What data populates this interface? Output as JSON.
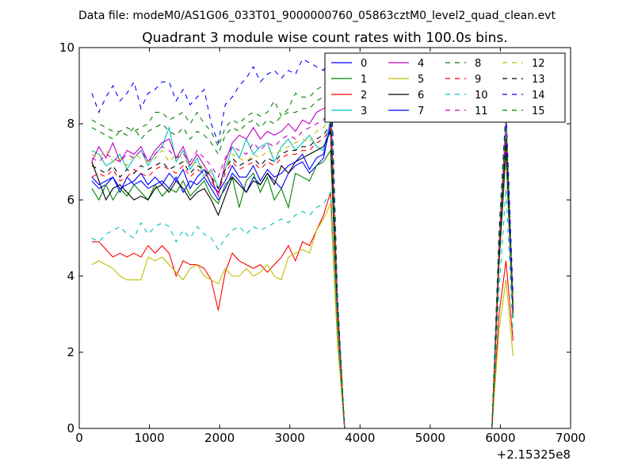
{
  "suptitle": "Data file: modeM0/AS1G06_033T01_9000000760_05863cztM0_level2_quad_clean.evt",
  "chart_data": {
    "type": "line",
    "title": "Quadrant 3 module wise count rates with 100.0s bins.",
    "xlabel": "",
    "ylabel": "",
    "x_offset_label": "+2.15325e8",
    "xlim": [
      0,
      7000
    ],
    "ylim": [
      0,
      10
    ],
    "xticks": [
      0,
      1000,
      2000,
      3000,
      4000,
      5000,
      6000,
      7000
    ],
    "yticks": [
      0,
      2,
      4,
      6,
      8,
      10
    ],
    "grid": false,
    "legend_position": "top-right",
    "legend_columns": 4,
    "x": [
      180,
      280,
      380,
      480,
      580,
      680,
      780,
      880,
      980,
      1080,
      1180,
      1280,
      1380,
      1480,
      1580,
      1680,
      1780,
      1880,
      1980,
      2080,
      2180,
      2280,
      2380,
      2480,
      2580,
      2680,
      2780,
      2880,
      2980,
      3080,
      3180,
      3280,
      3380,
      3480,
      3580,
      3680,
      3780,
      3880,
      3980,
      4080,
      4180,
      4280,
      4380,
      4480,
      4580,
      4680,
      4780,
      4880,
      4980,
      5080,
      5180,
      5280,
      5380,
      5480,
      5580,
      5680,
      5780,
      5880,
      5980,
      6080,
      6180
    ],
    "series": [
      {
        "name": "0",
        "color": "#0000ff",
        "dash": "solid",
        "values": [
          6.5,
          6.3,
          6.4,
          6.6,
          6.2,
          6.6,
          6.4,
          6.5,
          6.3,
          6.4,
          6.5,
          6.3,
          6.6,
          6.2,
          6.5,
          6.4,
          6.6,
          6.3,
          6.0,
          6.3,
          6.7,
          6.5,
          6.2,
          6.6,
          6.4,
          6.7,
          6.5,
          6.3,
          6.7,
          6.9,
          7.0,
          6.7,
          6.9,
          7.1,
          8.0,
          3.0,
          0,
          0,
          0,
          0,
          0,
          0,
          0,
          0,
          0,
          0,
          0,
          0,
          0,
          0,
          0,
          0,
          0,
          0,
          0,
          0,
          0,
          0,
          4.5,
          7.4,
          3.0
        ]
      },
      {
        "name": "1",
        "color": "#008000",
        "dash": "solid",
        "values": [
          6.3,
          6.0,
          6.4,
          6.0,
          6.3,
          6.1,
          6.4,
          6.2,
          6.0,
          6.4,
          6.1,
          6.3,
          6.2,
          6.5,
          6.1,
          6.3,
          6.5,
          6.1,
          5.9,
          6.4,
          6.6,
          5.8,
          6.5,
          6.7,
          6.2,
          6.6,
          6.0,
          6.3,
          5.8,
          6.7,
          6.6,
          6.5,
          6.9,
          7.0,
          7.3,
          2.8,
          0,
          0,
          0,
          0,
          0,
          0,
          0,
          0,
          0,
          0,
          0,
          0,
          0,
          0,
          0,
          0,
          0,
          0,
          0,
          0,
          0,
          0,
          4.3,
          7.2,
          2.9
        ]
      },
      {
        "name": "2",
        "color": "#ff0000",
        "dash": "solid",
        "values": [
          4.9,
          4.9,
          4.7,
          4.5,
          4.6,
          4.5,
          4.6,
          4.5,
          4.8,
          4.6,
          4.8,
          4.6,
          4.0,
          4.4,
          4.3,
          4.3,
          4.2,
          3.9,
          3.1,
          4.1,
          4.6,
          4.4,
          4.3,
          4.2,
          4.3,
          4.1,
          4.3,
          4.5,
          4.8,
          4.4,
          4.9,
          4.8,
          5.2,
          5.6,
          6.2,
          2.3,
          0,
          0,
          0,
          0,
          0,
          0,
          0,
          0,
          0,
          0,
          0,
          0,
          0,
          0,
          0,
          0,
          0,
          0,
          0,
          0,
          0,
          0,
          3.0,
          4.4,
          2.3
        ]
      },
      {
        "name": "3",
        "color": "#00bfbf",
        "dash": "solid",
        "values": [
          7.3,
          7.2,
          6.9,
          7.0,
          7.2,
          6.8,
          7.1,
          7.3,
          6.9,
          7.2,
          7.4,
          7.9,
          7.0,
          7.3,
          6.8,
          7.1,
          6.6,
          6.8,
          6.3,
          6.8,
          7.4,
          7.1,
          7.6,
          7.2,
          7.4,
          7.5,
          7.0,
          7.4,
          7.6,
          7.3,
          7.5,
          7.7,
          7.4,
          7.3,
          8.1,
          3.2,
          0,
          0,
          0,
          0,
          0,
          0,
          0,
          0,
          0,
          0,
          0,
          0,
          0,
          0,
          0,
          0,
          0,
          0,
          0,
          0,
          0,
          0,
          4.6,
          7.7,
          3.1
        ]
      },
      {
        "name": "4",
        "color": "#bf00bf",
        "dash": "solid",
        "values": [
          7.0,
          7.4,
          7.1,
          7.5,
          7.0,
          7.3,
          7.2,
          7.4,
          7.0,
          7.3,
          7.5,
          7.6,
          7.1,
          7.4,
          6.9,
          7.2,
          6.9,
          6.6,
          6.1,
          7.0,
          7.5,
          7.7,
          7.6,
          7.9,
          7.6,
          7.8,
          7.7,
          7.8,
          8.0,
          7.8,
          8.1,
          8.0,
          8.3,
          8.4,
          8.5,
          3.3,
          0,
          0,
          0,
          0,
          0,
          0,
          0,
          0,
          0,
          0,
          0,
          0,
          0,
          0,
          0,
          0,
          0,
          0,
          0,
          0,
          0,
          0,
          4.7,
          8.1,
          3.2
        ]
      },
      {
        "name": "5",
        "color": "#bfbf00",
        "dash": "solid",
        "values": [
          4.3,
          4.4,
          4.3,
          4.2,
          4.0,
          3.9,
          3.9,
          3.9,
          4.5,
          4.4,
          4.5,
          4.3,
          4.1,
          3.9,
          4.2,
          4.3,
          4.0,
          3.9,
          3.8,
          4.2,
          4.0,
          4.0,
          4.2,
          4.0,
          4.1,
          4.3,
          4.0,
          3.9,
          4.5,
          4.6,
          4.7,
          4.6,
          5.2,
          5.5,
          5.9,
          2.2,
          0,
          0,
          0,
          0,
          0,
          0,
          0,
          0,
          0,
          0,
          0,
          0,
          0,
          0,
          0,
          0,
          0,
          0,
          0,
          0,
          0,
          0,
          2.6,
          3.9,
          1.9
        ]
      },
      {
        "name": "6",
        "color": "#000000",
        "dash": "solid",
        "values": [
          7.0,
          6.5,
          6.0,
          6.3,
          6.4,
          6.2,
          6.0,
          6.1,
          6.0,
          6.3,
          6.4,
          6.2,
          6.5,
          6.3,
          6.0,
          6.2,
          6.3,
          6.0,
          5.6,
          6.1,
          6.6,
          6.4,
          6.2,
          6.5,
          6.4,
          6.7,
          6.4,
          6.9,
          6.7,
          7.0,
          7.1,
          7.2,
          7.3,
          7.4,
          7.8,
          3.0,
          0,
          0,
          0,
          0,
          0,
          0,
          0,
          0,
          0,
          0,
          0,
          0,
          0,
          0,
          0,
          0,
          0,
          0,
          0,
          0,
          0,
          0,
          4.4,
          7.6,
          3.0
        ]
      },
      {
        "name": "7",
        "color": "#0000ff",
        "dash": "solid",
        "values": [
          6.6,
          6.4,
          6.5,
          6.6,
          6.3,
          6.4,
          6.5,
          6.7,
          6.4,
          6.6,
          6.4,
          6.7,
          6.5,
          6.8,
          6.3,
          6.6,
          6.8,
          6.4,
          6.2,
          6.5,
          6.9,
          6.6,
          6.6,
          6.9,
          6.5,
          6.8,
          6.6,
          6.7,
          6.9,
          7.0,
          7.2,
          6.8,
          7.1,
          7.2,
          7.9,
          3.1,
          0,
          0,
          0,
          0,
          0,
          0,
          0,
          0,
          0,
          0,
          0,
          0,
          0,
          0,
          0,
          0,
          0,
          0,
          0,
          0,
          0,
          0,
          4.6,
          7.6,
          3.0
        ]
      },
      {
        "name": "8",
        "color": "#008000",
        "dash": "dashed",
        "values": [
          8.1,
          8.0,
          7.9,
          7.8,
          7.8,
          7.9,
          7.8,
          7.9,
          8.0,
          8.3,
          8.3,
          8.1,
          8.2,
          8.3,
          8.0,
          8.3,
          8.0,
          7.8,
          7.4,
          7.9,
          8.1,
          8.0,
          8.2,
          8.3,
          8.2,
          8.3,
          8.6,
          8.2,
          8.4,
          8.8,
          8.7,
          8.7,
          8.9,
          9.0,
          9.3,
          3.3,
          0,
          0,
          0,
          0,
          0,
          0,
          0,
          0,
          0,
          0,
          0,
          0,
          0,
          0,
          0,
          0,
          0,
          0,
          0,
          0,
          0,
          0,
          5.0,
          8.2,
          3.3
        ]
      },
      {
        "name": "9",
        "color": "#ff0000",
        "dash": "dashed",
        "values": [
          6.6,
          6.7,
          6.6,
          6.8,
          6.5,
          6.6,
          6.8,
          6.7,
          6.6,
          6.8,
          6.9,
          6.8,
          6.7,
          6.9,
          6.6,
          6.8,
          6.7,
          6.5,
          6.2,
          6.7,
          7.0,
          6.8,
          6.9,
          7.0,
          6.8,
          7.0,
          6.9,
          7.1,
          7.2,
          7.2,
          7.3,
          7.3,
          7.5,
          7.6,
          7.9,
          3.0,
          0,
          0,
          0,
          0,
          0,
          0,
          0,
          0,
          0,
          0,
          0,
          0,
          0,
          0,
          0,
          0,
          0,
          0,
          0,
          0,
          0,
          0,
          4.5,
          7.5,
          3.0
        ]
      },
      {
        "name": "10",
        "color": "#00bfbf",
        "dash": "dashed",
        "values": [
          5.0,
          4.9,
          5.1,
          5.2,
          5.3,
          5.1,
          5.0,
          5.4,
          5.1,
          5.3,
          5.4,
          5.3,
          4.9,
          5.2,
          5.0,
          5.3,
          5.1,
          5.0,
          4.7,
          5.0,
          5.2,
          5.3,
          5.1,
          5.3,
          5.2,
          5.3,
          5.4,
          5.5,
          5.4,
          5.6,
          5.7,
          5.6,
          5.8,
          5.9,
          6.2,
          2.6,
          0,
          0,
          0,
          0,
          0,
          0,
          0,
          0,
          0,
          0,
          0,
          0,
          0,
          0,
          0,
          0,
          0,
          0,
          0,
          0,
          0,
          0,
          3.6,
          6.3,
          2.5
        ]
      },
      {
        "name": "11",
        "color": "#bf00bf",
        "dash": "dashed",
        "values": [
          7.1,
          7.0,
          7.2,
          7.1,
          7.0,
          7.2,
          7.1,
          7.3,
          7.0,
          7.2,
          7.4,
          7.3,
          7.1,
          7.2,
          7.0,
          7.3,
          7.1,
          6.9,
          6.6,
          7.1,
          7.4,
          7.3,
          7.2,
          7.5,
          7.3,
          7.5,
          7.4,
          7.6,
          7.7,
          7.6,
          7.8,
          7.9,
          8.0,
          8.1,
          8.4,
          3.2,
          0,
          0,
          0,
          0,
          0,
          0,
          0,
          0,
          0,
          0,
          0,
          0,
          0,
          0,
          0,
          0,
          0,
          0,
          0,
          0,
          0,
          0,
          4.8,
          8.0,
          3.1
        ]
      },
      {
        "name": "12",
        "color": "#bfbf00",
        "dash": "dashed",
        "values": [
          7.2,
          7.1,
          7.3,
          7.0,
          7.1,
          6.9,
          7.2,
          7.1,
          7.0,
          7.1,
          7.3,
          7.0,
          7.2,
          7.1,
          6.9,
          7.0,
          6.8,
          6.7,
          6.3,
          6.8,
          7.2,
          7.1,
          7.0,
          7.2,
          7.1,
          7.3,
          7.2,
          7.3,
          7.4,
          7.5,
          7.6,
          7.5,
          7.8,
          7.9,
          8.2,
          3.1,
          0,
          0,
          0,
          0,
          0,
          0,
          0,
          0,
          0,
          0,
          0,
          0,
          0,
          0,
          0,
          0,
          0,
          0,
          0,
          0,
          0,
          0,
          4.7,
          7.7,
          3.0
        ]
      },
      {
        "name": "13",
        "color": "#000000",
        "dash": "dashed",
        "values": [
          6.9,
          6.8,
          6.7,
          6.9,
          6.6,
          6.8,
          6.7,
          6.9,
          6.8,
          6.9,
          7.0,
          6.8,
          6.9,
          7.0,
          6.7,
          6.9,
          6.8,
          6.6,
          6.3,
          6.8,
          7.1,
          6.9,
          7.0,
          7.1,
          6.9,
          7.1,
          7.0,
          7.2,
          7.3,
          7.3,
          7.4,
          7.4,
          7.6,
          7.7,
          8.0,
          3.1,
          0,
          0,
          0,
          0,
          0,
          0,
          0,
          0,
          0,
          0,
          0,
          0,
          0,
          0,
          0,
          0,
          0,
          0,
          0,
          0,
          0,
          0,
          4.6,
          7.6,
          3.0
        ]
      },
      {
        "name": "14",
        "color": "#0000ff",
        "dash": "dashed",
        "values": [
          8.8,
          8.3,
          8.7,
          9.0,
          8.6,
          8.8,
          9.1,
          8.4,
          8.8,
          8.9,
          9.1,
          9.1,
          8.6,
          8.9,
          8.5,
          8.7,
          8.9,
          8.0,
          7.5,
          8.5,
          8.7,
          9.0,
          9.2,
          9.5,
          9.1,
          9.3,
          9.4,
          9.2,
          9.4,
          9.3,
          9.7,
          9.6,
          9.5,
          9.4,
          9.8,
          3.5,
          0,
          0,
          0,
          0,
          0,
          0,
          0,
          0,
          0,
          0,
          0,
          0,
          0,
          0,
          0,
          0,
          0,
          0,
          0,
          0,
          0,
          0,
          5.2,
          8.4,
          3.5
        ]
      },
      {
        "name": "15",
        "color": "#008000",
        "dash": "dashed",
        "values": [
          7.9,
          7.8,
          7.7,
          7.6,
          7.8,
          7.7,
          7.9,
          7.6,
          7.8,
          7.9,
          8.0,
          7.8,
          7.7,
          7.9,
          7.6,
          7.8,
          7.7,
          7.5,
          7.2,
          7.7,
          7.9,
          7.8,
          8.0,
          8.1,
          7.9,
          8.1,
          8.0,
          8.2,
          8.3,
          8.3,
          8.4,
          8.4,
          8.6,
          8.7,
          9.0,
          3.3,
          0,
          0,
          0,
          0,
          0,
          0,
          0,
          0,
          0,
          0,
          0,
          0,
          0,
          0,
          0,
          0,
          0,
          0,
          0,
          0,
          0,
          0,
          5.0,
          8.1,
          3.2
        ]
      }
    ]
  }
}
